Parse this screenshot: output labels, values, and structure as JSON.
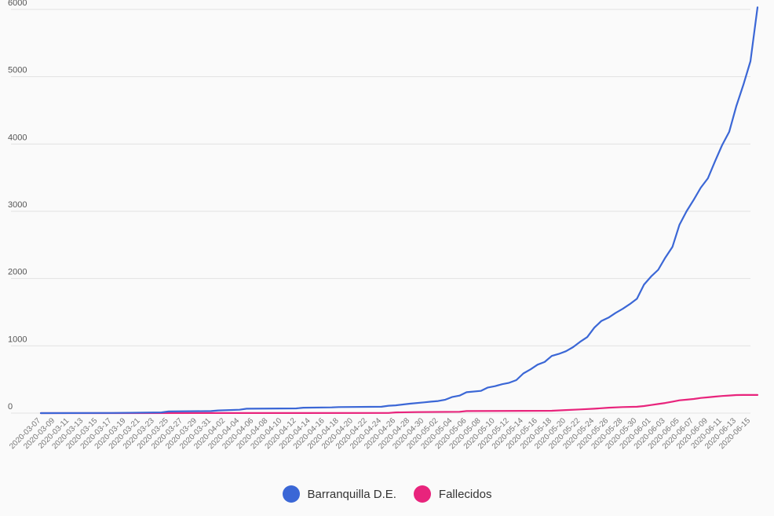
{
  "chart_data": {
    "type": "line",
    "title": "",
    "xlabel": "",
    "ylabel": "",
    "ylim": [
      0,
      6000
    ],
    "yticks": [
      0,
      1000,
      2000,
      3000,
      4000,
      5000,
      6000
    ],
    "grid": true,
    "legend": "bottom-center",
    "start_date": "2020-03-07",
    "end_date": "2020-06-15",
    "x_tick_labels": [
      "2020-03-07",
      "2020-03-09",
      "2020-03-11",
      "2020-03-13",
      "2020-03-15",
      "2020-03-17",
      "2020-03-19",
      "2020-03-21",
      "2020-03-23",
      "2020-03-25",
      "2020-03-27",
      "2020-03-29",
      "2020-03-31",
      "2020-04-02",
      "2020-04-04",
      "2020-04-06",
      "2020-04-08",
      "2020-04-10",
      "2020-04-12",
      "2020-04-14",
      "2020-04-16",
      "2020-04-18",
      "2020-04-20",
      "2020-04-22",
      "2020-04-24",
      "2020-04-26",
      "2020-04-28",
      "2020-04-30",
      "2020-05-02",
      "2020-05-04",
      "2020-05-06",
      "2020-05-08",
      "2020-05-10",
      "2020-05-12",
      "2020-05-14",
      "2020-05-16",
      "2020-05-18",
      "2020-05-20",
      "2020-05-22",
      "2020-05-24",
      "2020-05-26",
      "2020-05-28",
      "2020-05-30",
      "2020-06-01",
      "2020-06-03",
      "2020-06-05",
      "2020-06-07",
      "2020-06-09",
      "2020-06-11",
      "2020-06-13",
      "2020-06-15"
    ],
    "series": [
      {
        "name": "Barranquilla D.E.",
        "color": "#3b67d6",
        "points": [
          [
            "2020-03-07",
            0
          ],
          [
            "2020-03-17",
            2
          ],
          [
            "2020-03-24",
            10
          ],
          [
            "2020-03-25",
            25
          ],
          [
            "2020-03-31",
            30
          ],
          [
            "2020-04-01",
            40
          ],
          [
            "2020-04-04",
            50
          ],
          [
            "2020-04-05",
            65
          ],
          [
            "2020-04-12",
            70
          ],
          [
            "2020-04-13",
            80
          ],
          [
            "2020-04-17",
            85
          ],
          [
            "2020-04-18",
            90
          ],
          [
            "2020-04-24",
            95
          ],
          [
            "2020-04-25",
            110
          ],
          [
            "2020-04-26",
            115
          ],
          [
            "2020-04-28",
            140
          ],
          [
            "2020-04-30",
            160
          ],
          [
            "2020-05-01",
            170
          ],
          [
            "2020-05-02",
            180
          ],
          [
            "2020-05-03",
            200
          ],
          [
            "2020-05-04",
            240
          ],
          [
            "2020-05-05",
            260
          ],
          [
            "2020-05-06",
            310
          ],
          [
            "2020-05-08",
            330
          ],
          [
            "2020-05-09",
            380
          ],
          [
            "2020-05-10",
            400
          ],
          [
            "2020-05-11",
            430
          ],
          [
            "2020-05-12",
            450
          ],
          [
            "2020-05-13",
            490
          ],
          [
            "2020-05-14",
            590
          ],
          [
            "2020-05-15",
            650
          ],
          [
            "2020-05-16",
            720
          ],
          [
            "2020-05-17",
            760
          ],
          [
            "2020-05-18",
            850
          ],
          [
            "2020-05-19",
            880
          ],
          [
            "2020-05-20",
            920
          ],
          [
            "2020-05-21",
            980
          ],
          [
            "2020-05-22",
            1060
          ],
          [
            "2020-05-23",
            1130
          ],
          [
            "2020-05-24",
            1270
          ],
          [
            "2020-05-25",
            1370
          ],
          [
            "2020-05-26",
            1420
          ],
          [
            "2020-05-27",
            1490
          ],
          [
            "2020-05-28",
            1550
          ],
          [
            "2020-05-29",
            1620
          ],
          [
            "2020-05-30",
            1700
          ],
          [
            "2020-05-31",
            1910
          ],
          [
            "2020-06-01",
            2030
          ],
          [
            "2020-06-02",
            2130
          ],
          [
            "2020-06-03",
            2310
          ],
          [
            "2020-06-04",
            2470
          ],
          [
            "2020-06-05",
            2800
          ],
          [
            "2020-06-06",
            3000
          ],
          [
            "2020-06-07",
            3170
          ],
          [
            "2020-06-08",
            3350
          ],
          [
            "2020-06-09",
            3490
          ],
          [
            "2020-06-10",
            3740
          ],
          [
            "2020-06-11",
            3980
          ],
          [
            "2020-06-12",
            4180
          ],
          [
            "2020-06-13",
            4560
          ],
          [
            "2020-06-14",
            4880
          ],
          [
            "2020-06-15",
            5230
          ],
          [
            "2020-06-16",
            6030
          ]
        ]
      },
      {
        "name": "Fallecidos",
        "color": "#e8247c",
        "points": [
          [
            "2020-03-07",
            0
          ],
          [
            "2020-04-25",
            2
          ],
          [
            "2020-04-26",
            10
          ],
          [
            "2020-04-29",
            15
          ],
          [
            "2020-05-05",
            20
          ],
          [
            "2020-05-06",
            30
          ],
          [
            "2020-05-18",
            35
          ],
          [
            "2020-05-20",
            45
          ],
          [
            "2020-05-22",
            55
          ],
          [
            "2020-05-24",
            65
          ],
          [
            "2020-05-26",
            80
          ],
          [
            "2020-05-28",
            90
          ],
          [
            "2020-05-30",
            95
          ],
          [
            "2020-05-31",
            105
          ],
          [
            "2020-06-01",
            120
          ],
          [
            "2020-06-02",
            135
          ],
          [
            "2020-06-03",
            150
          ],
          [
            "2020-06-04",
            170
          ],
          [
            "2020-06-05",
            190
          ],
          [
            "2020-06-06",
            200
          ],
          [
            "2020-06-07",
            210
          ],
          [
            "2020-06-08",
            225
          ],
          [
            "2020-06-09",
            235
          ],
          [
            "2020-06-10",
            245
          ],
          [
            "2020-06-11",
            255
          ],
          [
            "2020-06-12",
            262
          ],
          [
            "2020-06-13",
            268
          ],
          [
            "2020-06-14",
            270
          ],
          [
            "2020-06-16",
            270
          ]
        ]
      }
    ]
  }
}
